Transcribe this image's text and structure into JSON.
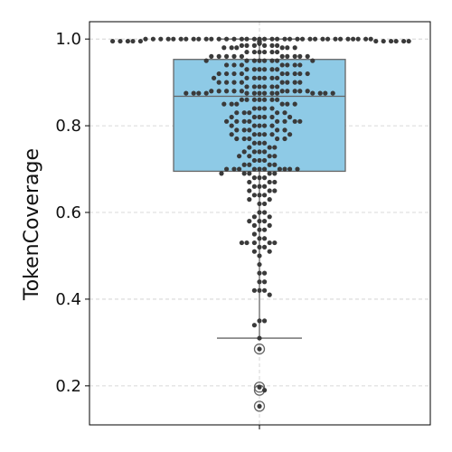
{
  "chart_data": {
    "type": "box",
    "ylabel": "TokenCoverage",
    "xlabel": "",
    "ylim": [
      0.11,
      1.04
    ],
    "yticks": [
      0.2,
      0.4,
      0.6,
      0.8,
      1.0
    ],
    "ytick_labels": [
      "0.2",
      "0.4",
      "0.6",
      "0.8",
      "1.0"
    ],
    "grid": true,
    "box": {
      "q1": 0.695,
      "median": 0.868,
      "q3": 0.953,
      "whisker_low": 0.31,
      "whisker_high": 1.0,
      "fliers": [
        0.285,
        0.197,
        0.19,
        0.153
      ]
    },
    "points": [
      1.0,
      1.0,
      1.0,
      1.0,
      1.0,
      1.0,
      1.0,
      1.0,
      1.0,
      1.0,
      1.0,
      1.0,
      1.0,
      1.0,
      1.0,
      1.0,
      1.0,
      1.0,
      1.0,
      1.0,
      1.0,
      1.0,
      1.0,
      1.0,
      1.0,
      1.0,
      1.0,
      1.0,
      1.0,
      1.0,
      1.0,
      1.0,
      1.0,
      1.0,
      1.0,
      1.0,
      0.995,
      0.995,
      0.995,
      0.995,
      0.995,
      0.995,
      0.995,
      0.995,
      0.995,
      0.995,
      0.995,
      0.995,
      0.995,
      0.995,
      0.99,
      0.99,
      0.99,
      0.99,
      0.99,
      0.99,
      0.99,
      0.99,
      0.99,
      0.99,
      0.985,
      0.985,
      0.985,
      0.985,
      0.985,
      0.985,
      0.98,
      0.98,
      0.98,
      0.98,
      0.98,
      0.98,
      0.97,
      0.97,
      0.97,
      0.97,
      0.97,
      0.97,
      0.96,
      0.96,
      0.96,
      0.96,
      0.96,
      0.96,
      0.96,
      0.96,
      0.96,
      0.96,
      0.95,
      0.95,
      0.95,
      0.95,
      0.95,
      0.95,
      0.95,
      0.95,
      0.94,
      0.94,
      0.94,
      0.94,
      0.94,
      0.94,
      0.94,
      0.93,
      0.93,
      0.93,
      0.93,
      0.93,
      0.93,
      0.92,
      0.92,
      0.92,
      0.92,
      0.92,
      0.92,
      0.92,
      0.92,
      0.92,
      0.91,
      0.91,
      0.91,
      0.91,
      0.91,
      0.91,
      0.91,
      0.9,
      0.9,
      0.9,
      0.9,
      0.9,
      0.9,
      0.9,
      0.9,
      0.89,
      0.89,
      0.89,
      0.89,
      0.89,
      0.89,
      0.88,
      0.88,
      0.88,
      0.88,
      0.88,
      0.88,
      0.88,
      0.88,
      0.88,
      0.88,
      0.875,
      0.875,
      0.875,
      0.875,
      0.875,
      0.875,
      0.875,
      0.875,
      0.875,
      0.875,
      0.875,
      0.875,
      0.875,
      0.875,
      0.86,
      0.86,
      0.86,
      0.86,
      0.86,
      0.86,
      0.86,
      0.85,
      0.85,
      0.85,
      0.85,
      0.85,
      0.85,
      0.84,
      0.84,
      0.84,
      0.84,
      0.83,
      0.83,
      0.83,
      0.83,
      0.83,
      0.82,
      0.82,
      0.82,
      0.82,
      0.82,
      0.82,
      0.81,
      0.81,
      0.81,
      0.81,
      0.81,
      0.81,
      0.81,
      0.81,
      0.8,
      0.8,
      0.8,
      0.8,
      0.8,
      0.79,
      0.79,
      0.79,
      0.79,
      0.79,
      0.78,
      0.78,
      0.78,
      0.78,
      0.78,
      0.78,
      0.77,
      0.77,
      0.77,
      0.77,
      0.77,
      0.76,
      0.76,
      0.76,
      0.75,
      0.75,
      0.75,
      0.74,
      0.74,
      0.74,
      0.74,
      0.73,
      0.73,
      0.73,
      0.73,
      0.72,
      0.72,
      0.72,
      0.71,
      0.71,
      0.71,
      0.71,
      0.7,
      0.7,
      0.7,
      0.7,
      0.7,
      0.7,
      0.7,
      0.7,
      0.7,
      0.7,
      0.69,
      0.69,
      0.69,
      0.69,
      0.69,
      0.68,
      0.68,
      0.68,
      0.67,
      0.67,
      0.67,
      0.66,
      0.66,
      0.66,
      0.65,
      0.65,
      0.65,
      0.64,
      0.64,
      0.64,
      0.63,
      0.63,
      0.62,
      0.62,
      0.6,
      0.6,
      0.59,
      0.59,
      0.58,
      0.58,
      0.58,
      0.57,
      0.57,
      0.56,
      0.56,
      0.55,
      0.54,
      0.54,
      0.53,
      0.53,
      0.53,
      0.53,
      0.53,
      0.52,
      0.52,
      0.51,
      0.51,
      0.5,
      0.48,
      0.46,
      0.46,
      0.44,
      0.44,
      0.42,
      0.42,
      0.42,
      0.41,
      0.35,
      0.35,
      0.34,
      0.31,
      0.285,
      0.197,
      0.19,
      0.153
    ],
    "colors": {
      "box_fill": "#8ecae6",
      "box_edge": "#666666",
      "point": "#3a3a3a",
      "grid": "#cccccc"
    }
  }
}
